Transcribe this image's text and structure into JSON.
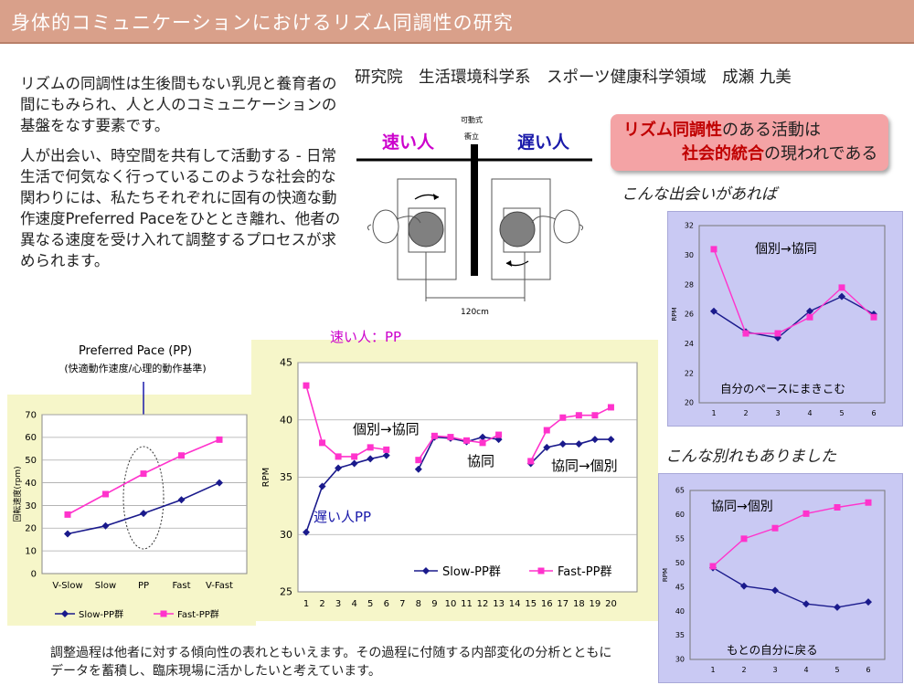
{
  "title": "身体的コミュニケーションにおけるリズム同調性の研究",
  "author": "研究院　生活環境科学系　スポーツ健康科学領域　成瀬 九美",
  "intro": {
    "p1": "リズムの同調性は生後間もない乳児と養育者の間にもみられ、人と人のコミュニケーションの基盤をなす要素です。",
    "p2": "人が出会い、時空間を共有して活動する - 日常生活で何気なく行っているこのような社会的な関わりには、私たちそれぞれに固有の快適な動作速度Preferred Paceをひととき離れ、他者の異なる速度を受け入れて調整するプロセスが求められます。"
  },
  "diagram": {
    "fast_label": "速い人",
    "slow_label": "遅い人",
    "partition_label_1": "可動式",
    "partition_label_2": "衝立",
    "distance_label": "120cm"
  },
  "callout": {
    "line1_emph": "リズム同調性",
    "line1_rest": "のある活動は",
    "line2_emph": "社会的統合",
    "line2_rest": "の現われである"
  },
  "note_meet": "こんな出会いがあれば",
  "note_part": "こんな別れもありました",
  "footer": "調整過程は他者に対する傾向性の表れともいえます。その過程に付随する内部変化の分析とともにデータを蓄積し、臨床現場に活かしたいと考えています。",
  "colors": {
    "slow": "#1a1a8c",
    "fast": "#ff33cc",
    "fast_label": "#cc00cc",
    "slow_label": "#1a1aaa"
  },
  "chart_data": [
    {
      "id": "pp",
      "type": "line",
      "title": "Preferred Pace (PP)",
      "subtitle": "(快適動作速度/心理的動作基準)",
      "categories": [
        "V-Slow",
        "Slow",
        "PP",
        "Fast",
        "V-Fast"
      ],
      "ylabel": "回転速度(rpm)",
      "ylim": [
        0,
        70
      ],
      "yticks": [
        "0",
        "10",
        "20",
        "30",
        "40",
        "50",
        "60",
        "70"
      ],
      "legend": [
        "Slow-PP群",
        "Fast-PP群"
      ],
      "series": [
        {
          "name": "Slow-PP群",
          "values": [
            17.5,
            21,
            26.5,
            32.5,
            40
          ]
        },
        {
          "name": "Fast-PP群",
          "values": [
            26,
            35,
            44,
            52,
            59
          ]
        }
      ]
    },
    {
      "id": "main",
      "type": "line",
      "ylabel": "RPM",
      "ylim": [
        25,
        45
      ],
      "yticks": [
        "25",
        "30",
        "35",
        "40",
        "45"
      ],
      "x": [
        1,
        2,
        3,
        4,
        5,
        6,
        7,
        8,
        9,
        10,
        11,
        12,
        13,
        14,
        15,
        16,
        17,
        18,
        19,
        20
      ],
      "xticks": [
        "1",
        "2",
        "3",
        "4",
        "5",
        "6",
        "7",
        "8",
        "9",
        "10",
        "11",
        "12",
        "13",
        "14",
        "15",
        "16",
        "17",
        "18",
        "19",
        "20"
      ],
      "legend": [
        "Slow-PP群",
        "Fast-PP群"
      ],
      "annotations": [
        "速い人：PP",
        "個別→協同",
        "協同",
        "協同→個別",
        "遅い人PP"
      ],
      "series": [
        {
          "name": "Slow-PP群",
          "segments": [
            [
              [
                1,
                30.2
              ],
              [
                2,
                34.2
              ],
              [
                3,
                35.8
              ],
              [
                4,
                36.2
              ],
              [
                5,
                36.6
              ],
              [
                6,
                36.9
              ]
            ],
            [
              [
                8,
                35.7
              ],
              [
                9,
                38.5
              ],
              [
                10,
                38.4
              ],
              [
                11,
                38.1
              ],
              [
                12,
                38.5
              ],
              [
                13,
                38.3
              ]
            ],
            [
              [
                15,
                36.2
              ],
              [
                16,
                37.6
              ],
              [
                17,
                37.9
              ],
              [
                18,
                37.9
              ],
              [
                19,
                38.3
              ],
              [
                20,
                38.3
              ]
            ]
          ]
        },
        {
          "name": "Fast-PP群",
          "segments": [
            [
              [
                1,
                43
              ],
              [
                2,
                38.0
              ],
              [
                3,
                36.8
              ],
              [
                4,
                36.8
              ],
              [
                5,
                37.6
              ],
              [
                6,
                37.4
              ]
            ],
            [
              [
                8,
                36.5
              ],
              [
                9,
                38.6
              ],
              [
                10,
                38.5
              ],
              [
                11,
                38.2
              ],
              [
                12,
                38.0
              ],
              [
                13,
                38.7
              ]
            ],
            [
              [
                15,
                36.4
              ],
              [
                16,
                39.1
              ],
              [
                17,
                40.2
              ],
              [
                18,
                40.4
              ],
              [
                19,
                40.4
              ],
              [
                20,
                41.1
              ]
            ]
          ]
        }
      ]
    },
    {
      "id": "meet",
      "type": "line",
      "ylabel": "RPM",
      "ylim": [
        20,
        32
      ],
      "yticks": [
        "20",
        "22",
        "24",
        "26",
        "28",
        "30",
        "32"
      ],
      "categories": [
        "1",
        "2",
        "3",
        "4",
        "5",
        "6"
      ],
      "annotations": [
        "個別→協同",
        "自分のペースにまきこむ"
      ],
      "series": [
        {
          "name": "Slow-PP群",
          "values": [
            26.2,
            24.8,
            24.4,
            26.2,
            27.2,
            26.0
          ]
        },
        {
          "name": "Fast-PP群",
          "values": [
            30.4,
            24.7,
            24.7,
            25.8,
            27.8,
            25.8
          ]
        }
      ]
    },
    {
      "id": "part",
      "type": "line",
      "ylabel": "RPM",
      "ylim": [
        30,
        65
      ],
      "yticks": [
        "30",
        "35",
        "40",
        "45",
        "50",
        "55",
        "60",
        "65"
      ],
      "categories": [
        "1",
        "2",
        "3",
        "4",
        "5",
        "6"
      ],
      "annotations": [
        "協同→個別",
        "もとの自分に戻る"
      ],
      "series": [
        {
          "name": "Slow-PP群",
          "values": [
            49,
            45.2,
            44.3,
            41.5,
            40.8,
            41.9
          ]
        },
        {
          "name": "Fast-PP群",
          "values": [
            49.3,
            55,
            57.2,
            60.2,
            61.5,
            62.5
          ]
        }
      ]
    }
  ]
}
